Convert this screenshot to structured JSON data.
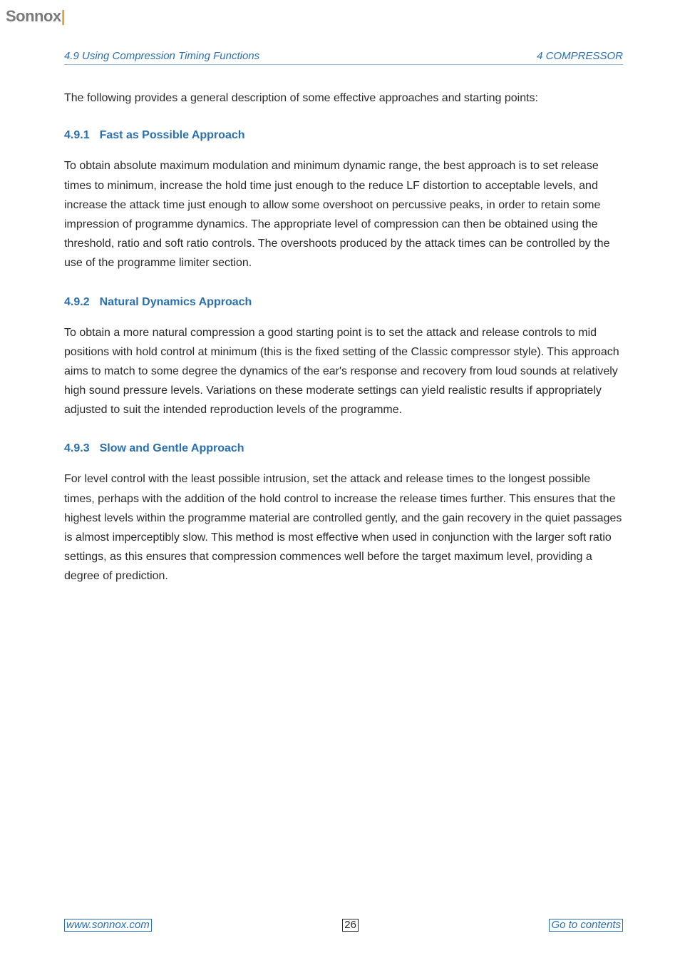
{
  "logo": {
    "text": "Sonnox",
    "accent": "|"
  },
  "header": {
    "left": "4.9   Using Compression Timing Functions",
    "right": "4   COMPRESSOR"
  },
  "intro": "The following provides a general description of some effective approaches and starting points:",
  "sections": [
    {
      "num": "4.9.1",
      "title": "Fast as Possible Approach",
      "body": "To obtain absolute maximum modulation and minimum dynamic range, the best approach is to set release times to minimum, increase the hold time just enough to the reduce LF distortion to acceptable levels, and increase the attack time just enough to allow some overshoot on percussive peaks, in order to retain some impression of programme dynamics. The appropriate level of compression can then be obtained using the threshold, ratio and soft ratio controls. The overshoots produced by the attack times can be controlled by the use of the programme limiter section."
    },
    {
      "num": "4.9.2",
      "title": "Natural Dynamics Approach",
      "body": "To obtain a more natural compression a good starting point is to set the attack and release controls to mid positions with hold control at minimum (this is the fixed setting of the Classic compressor style). This approach aims to match to some degree the dynamics of the ear's response and recovery from loud sounds at relatively high sound pressure levels. Variations on these moderate settings can yield realistic results if appropriately adjusted to suit the intended reproduction levels of the programme."
    },
    {
      "num": "4.9.3",
      "title": "Slow and Gentle Approach",
      "body": "For level control with the least possible intrusion, set the attack and release times to the longest possible times, perhaps with the addition of the hold control to increase the release times further. This ensures that the highest levels within the programme material are controlled gently, and the gain recovery in the quiet passages is almost imperceptibly slow. This method is most effective when used in conjunction with the larger soft ratio settings, as this ensures that compression commences well before the target maximum level, providing a degree of prediction."
    }
  ],
  "footer": {
    "left": "www.sonnox.com",
    "page": "26",
    "right": "Go to contents"
  },
  "colors": {
    "heading": "#2a6fb0",
    "text": "#2a2a2a",
    "logo": "#7a7a7a",
    "rule": "#9bbcd8"
  }
}
